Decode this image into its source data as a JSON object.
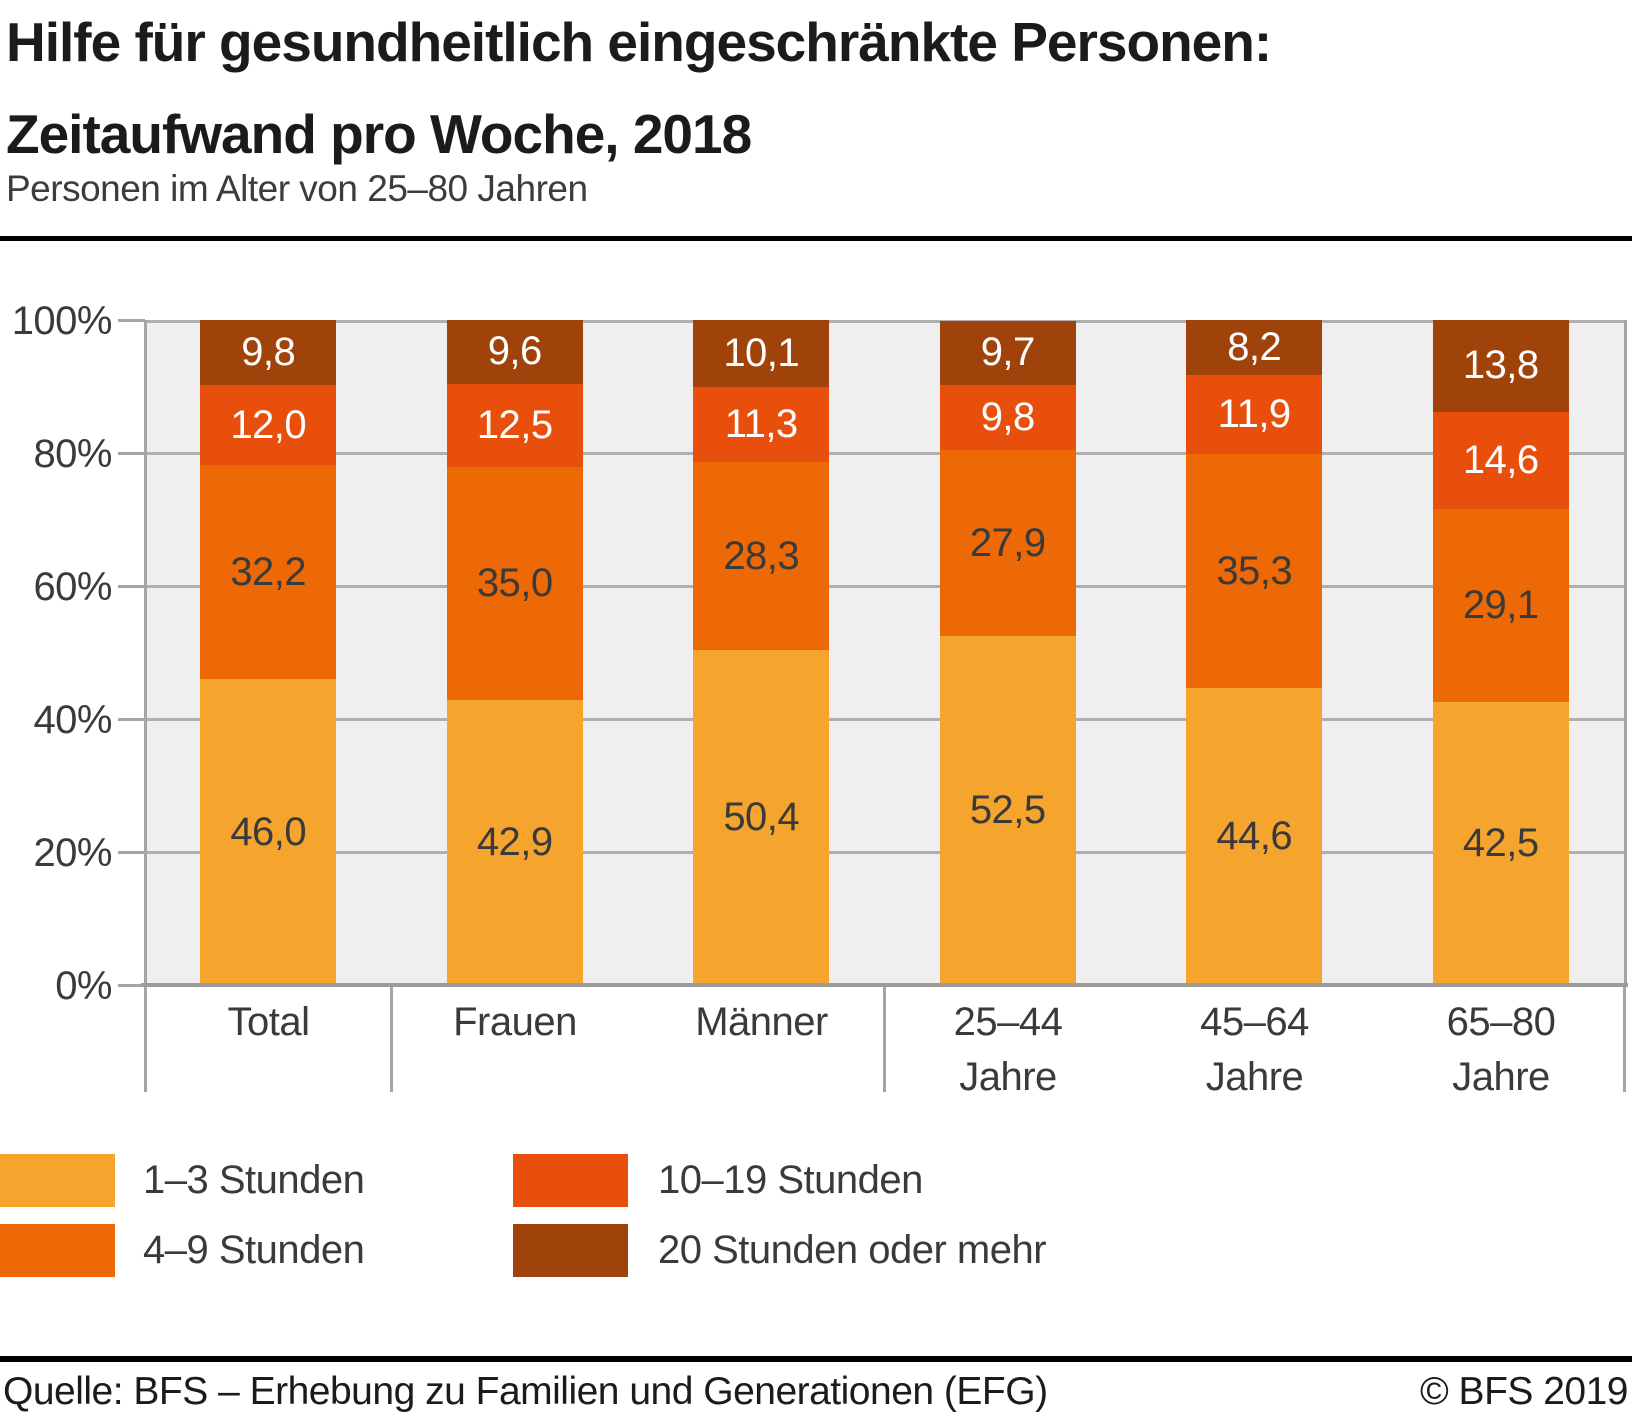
{
  "title": {
    "line1": "Hilfe für gesundheitlich eingeschränkte Personen:",
    "line2": "Zeitaufwand pro Woche, 2018"
  },
  "subtitle": "Personen im Alter von 25–80 Jahren",
  "footer": {
    "source": "Quelle: BFS – Erhebung zu Familien und Generationen (EFG)",
    "copyright": "© BFS 2019"
  },
  "colors": {
    "plot_background": "#efefef",
    "gridline": "#afafaf",
    "axis": "#a5a5a5",
    "text_dark": "#3a3a3a",
    "text_light": "#ffffff",
    "rule": "#000000"
  },
  "chart_data": {
    "type": "bar",
    "stacked": true,
    "unit": "%",
    "title": "Hilfe für gesundheitlich eingeschränkte Personen: Zeitaufwand pro Woche, 2018",
    "subtitle": "Personen im Alter von 25–80 Jahren",
    "categories": [
      "Total",
      "Frauen",
      "Männer",
      "25–44 Jahre",
      "45–64 Jahre",
      "65–80 Jahre"
    ],
    "category_groups": [
      [
        "Total"
      ],
      [
        "Frauen",
        "Männer"
      ],
      [
        "25–44 Jahre",
        "45–64 Jahre",
        "65–80 Jahre"
      ]
    ],
    "series": [
      {
        "name": "1–3 Stunden",
        "color": "#f5a42e",
        "value_label_color": "#3a3a3a",
        "values": [
          46.0,
          42.9,
          50.4,
          52.5,
          44.6,
          42.5
        ]
      },
      {
        "name": "4–9 Stunden",
        "color": "#ec6905",
        "value_label_color": "#3a3a3a",
        "values": [
          32.2,
          35.0,
          28.3,
          27.9,
          35.3,
          29.1
        ]
      },
      {
        "name": "10–19 Stunden",
        "color": "#e84f0d",
        "value_label_color": "#ffffff",
        "values": [
          12.0,
          12.5,
          11.3,
          9.8,
          11.9,
          14.6
        ]
      },
      {
        "name": "20 Stunden oder mehr",
        "color": "#a0430b",
        "value_label_color": "#ffffff",
        "values": [
          9.8,
          9.6,
          10.1,
          9.7,
          8.2,
          13.8
        ]
      }
    ],
    "ylim": [
      0,
      100
    ],
    "y_ticks": [
      "100%",
      "80%",
      "60%",
      "40%",
      "20%",
      "0%"
    ],
    "y_tick_values": [
      100,
      80,
      60,
      40,
      20,
      0
    ],
    "grid": true,
    "decimal_separator": ",",
    "legend_position": "bottom-left"
  }
}
